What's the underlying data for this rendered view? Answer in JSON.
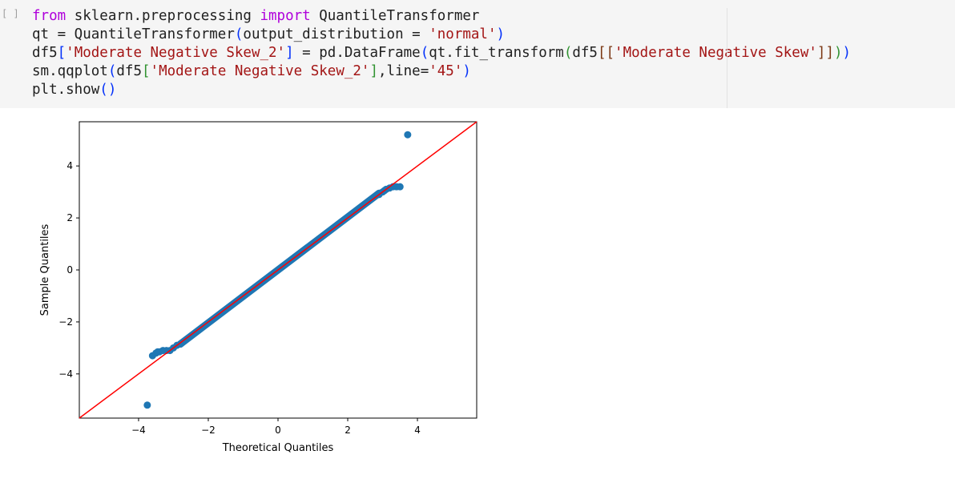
{
  "cell": {
    "prompt": "[ ]",
    "code_lines": [
      [
        {
          "text": "from",
          "cls": "kw"
        },
        {
          "text": " sklearn.preprocessing ",
          "cls": ""
        },
        {
          "text": "import",
          "cls": "kw"
        },
        {
          "text": " QuantileTransformer",
          "cls": ""
        }
      ],
      [
        {
          "text": "qt = QuantileTransformer",
          "cls": ""
        },
        {
          "text": "(",
          "cls": "p1"
        },
        {
          "text": "output_distribution = ",
          "cls": ""
        },
        {
          "text": "'normal'",
          "cls": "str"
        },
        {
          "text": ")",
          "cls": "p1"
        }
      ],
      [
        {
          "text": "df5",
          "cls": ""
        },
        {
          "text": "[",
          "cls": "p1"
        },
        {
          "text": "'Moderate Negative Skew_2'",
          "cls": "str"
        },
        {
          "text": "]",
          "cls": "p1"
        },
        {
          "text": " = pd.DataFrame",
          "cls": ""
        },
        {
          "text": "(",
          "cls": "p1"
        },
        {
          "text": "qt.fit_transform",
          "cls": ""
        },
        {
          "text": "(",
          "cls": "p2"
        },
        {
          "text": "df5",
          "cls": ""
        },
        {
          "text": "[[",
          "cls": "p3"
        },
        {
          "text": "'Moderate Negative Skew'",
          "cls": "str"
        },
        {
          "text": "]]",
          "cls": "p3"
        },
        {
          "text": ")",
          "cls": "p2"
        },
        {
          "text": ")",
          "cls": "p1"
        }
      ],
      [
        {
          "text": "sm.qqplot",
          "cls": ""
        },
        {
          "text": "(",
          "cls": "p1"
        },
        {
          "text": "df5",
          "cls": ""
        },
        {
          "text": "[",
          "cls": "p2"
        },
        {
          "text": "'Moderate Negative Skew_2'",
          "cls": "str"
        },
        {
          "text": "]",
          "cls": "p2"
        },
        {
          "text": ",line=",
          "cls": ""
        },
        {
          "text": "'45'",
          "cls": "str"
        },
        {
          "text": ")",
          "cls": "p1"
        }
      ],
      [
        {
          "text": "plt.show",
          "cls": ""
        },
        {
          "text": "()",
          "cls": "p1"
        }
      ]
    ]
  },
  "chart_data": {
    "type": "scatter",
    "title": "",
    "xlabel": "Theoretical Quantiles",
    "ylabel": "Sample Quantiles",
    "xlim": [
      -5.7,
      5.7
    ],
    "ylim": [
      -5.7,
      5.7
    ],
    "xticks": [
      -4,
      -2,
      0,
      2,
      4
    ],
    "yticks": [
      -4,
      -2,
      0,
      2,
      4
    ],
    "tick_labels": [
      "−4",
      "−2",
      "0",
      "2",
      "4"
    ],
    "grid": false,
    "reference_line": {
      "type": "45-degree",
      "color": "#ff0000"
    },
    "marker_color": "#1f77b4",
    "series": [
      {
        "x": [
          -3.75,
          -3.6,
          -3.5,
          -3.45,
          -3.4,
          -3.3,
          -3.2,
          -3.1,
          -3.0,
          -2.9,
          -2.8,
          2.9,
          3.0,
          3.05,
          3.1,
          3.2,
          3.3,
          3.4,
          3.5,
          3.72
        ],
        "y": [
          -5.2,
          -3.3,
          -3.2,
          -3.15,
          -3.15,
          -3.1,
          -3.1,
          -3.1,
          -3.0,
          -2.9,
          -2.85,
          2.9,
          3.0,
          3.05,
          3.1,
          3.15,
          3.2,
          3.2,
          3.2,
          5.2
        ]
      }
    ],
    "dense_band": {
      "x_from": -2.8,
      "x_to": 2.9,
      "y_offset": 0.05
    }
  }
}
